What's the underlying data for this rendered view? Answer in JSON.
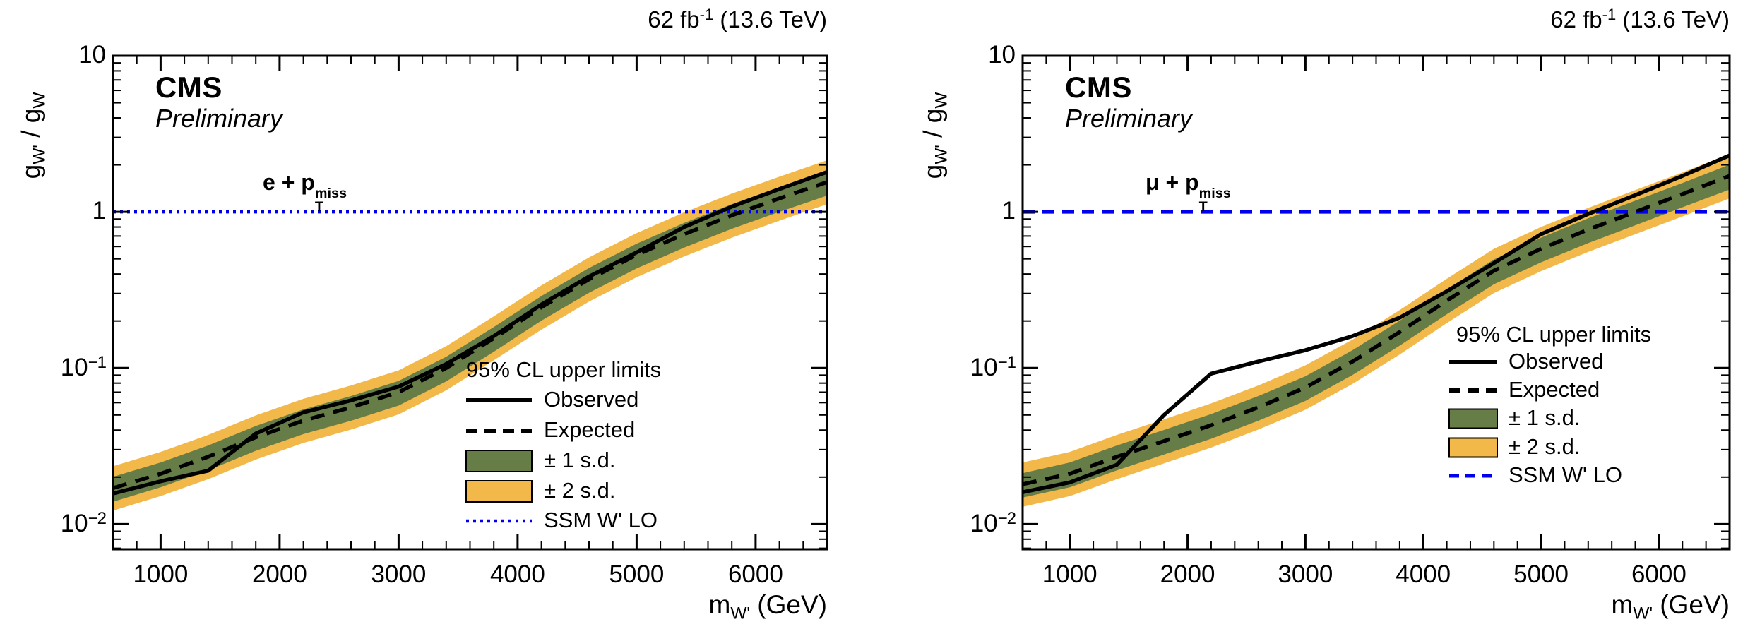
{
  "shared": {
    "cms": "CMS",
    "preliminary": "Preliminary",
    "lumi": {
      "value": "62 fb",
      "sup": "-1",
      "suffix": " (13.6 TeV)"
    },
    "y_axis": {
      "title_parts": {
        "g1": "g",
        "sub1": "W'",
        "slash": " / g",
        "sub2": "W"
      },
      "scale": "log",
      "range": [
        0.0069,
        10
      ],
      "ticks": [
        {
          "base": "10",
          "exp": "",
          "value": 10
        },
        {
          "base": "1",
          "exp": "",
          "value": 1
        },
        {
          "base": "10",
          "exp": "−1",
          "value": 0.1
        },
        {
          "base": "10",
          "exp": "−2",
          "value": 0.01
        }
      ]
    },
    "x_axis": {
      "title_parts": {
        "m": "m",
        "sub": "W'",
        "suffix": " (GeV)"
      },
      "range": [
        600,
        6600
      ],
      "tick_values": [
        1000,
        2000,
        3000,
        4000,
        5000,
        6000
      ],
      "tick_labels": [
        "1000",
        "2000",
        "3000",
        "4000",
        "5000",
        "6000"
      ],
      "minor_step": 200
    },
    "legend": {
      "title": "95% CL upper limits",
      "entries": [
        {
          "label": "Observed",
          "marker": "solid-black-line"
        },
        {
          "label": "Expected",
          "marker": "dashed-black-line"
        },
        {
          "label": "± 1 s.d.",
          "marker": "green-box"
        },
        {
          "label": "± 2 s.d.",
          "marker": "yellow-box"
        },
        {
          "label": "SSM W' LO",
          "marker": "blue-line"
        }
      ]
    },
    "colors": {
      "one_sd_band": "#677d48",
      "two_sd_band": "#f3b84a",
      "observed": "#000000",
      "expected": "#000000",
      "ssm_line": "#0000ee",
      "frame": "#000000",
      "background": "#ffffff"
    }
  },
  "chart_data": [
    {
      "type": "line",
      "panel": "left",
      "channel": "e + pT-miss",
      "channel_parts": {
        "lepton": "e",
        "plus": " + p",
        "sub": "T",
        "sup": "miss"
      },
      "ssm_line_style": "dotted",
      "ssm_value": 1.0,
      "xlabel": "m_W' (GeV)",
      "ylabel": "g_W' / g_W",
      "xlim": [
        600,
        6600
      ],
      "ylim": [
        0.0069,
        10
      ],
      "x_gev": [
        600,
        1000,
        1400,
        1800,
        2200,
        2600,
        3000,
        3400,
        3800,
        4200,
        4600,
        5000,
        5400,
        5800,
        6200,
        6600
      ],
      "observed": [
        0.0157,
        0.0188,
        0.022,
        0.038,
        0.052,
        0.062,
        0.076,
        0.106,
        0.16,
        0.255,
        0.385,
        0.55,
        0.8,
        1.08,
        1.4,
        1.8
      ],
      "expected": [
        0.017,
        0.021,
        0.027,
        0.036,
        0.046,
        0.056,
        0.07,
        0.1,
        0.155,
        0.245,
        0.37,
        0.53,
        0.72,
        0.95,
        1.22,
        1.55
      ],
      "one_sd_hi": [
        0.0201,
        0.0248,
        0.0319,
        0.0425,
        0.0543,
        0.0661,
        0.0826,
        0.118,
        0.183,
        0.289,
        0.437,
        0.625,
        0.85,
        1.12,
        1.44,
        1.83
      ],
      "one_sd_lo": [
        0.0139,
        0.0172,
        0.0221,
        0.0295,
        0.0377,
        0.0459,
        0.0574,
        0.082,
        0.127,
        0.201,
        0.303,
        0.434,
        0.59,
        0.779,
        1.0,
        1.27
      ],
      "two_sd_hi": [
        0.0235,
        0.029,
        0.0373,
        0.0497,
        0.0635,
        0.0773,
        0.0966,
        0.138,
        0.214,
        0.338,
        0.511,
        0.731,
        0.994,
        1.31,
        1.68,
        2.14
      ],
      "two_sd_lo": [
        0.0122,
        0.0151,
        0.0194,
        0.0259,
        0.0331,
        0.0403,
        0.0504,
        0.0719,
        0.112,
        0.176,
        0.266,
        0.381,
        0.518,
        0.683,
        0.878,
        1.12
      ]
    },
    {
      "type": "line",
      "panel": "right",
      "channel": "mu + pT-miss",
      "channel_parts": {
        "lepton": "μ",
        "plus": " + p",
        "sub": "T",
        "sup": "miss"
      },
      "ssm_line_style": "dashed",
      "ssm_value": 1.0,
      "xlabel": "m_W' (GeV)",
      "ylabel": "g_W' / g_W",
      "xlim": [
        600,
        6600
      ],
      "ylim": [
        0.0069,
        10
      ],
      "x_gev": [
        600,
        1000,
        1400,
        1800,
        2200,
        2600,
        3000,
        3400,
        3800,
        4200,
        4600,
        5000,
        5400,
        5800,
        6200,
        6600
      ],
      "observed": [
        0.016,
        0.0185,
        0.024,
        0.05,
        0.092,
        0.11,
        0.13,
        0.16,
        0.21,
        0.31,
        0.47,
        0.72,
        0.97,
        1.28,
        1.7,
        2.3
      ],
      "expected": [
        0.018,
        0.021,
        0.027,
        0.034,
        0.043,
        0.056,
        0.075,
        0.11,
        0.17,
        0.27,
        0.42,
        0.58,
        0.77,
        1.0,
        1.3,
        1.7
      ],
      "one_sd_hi": [
        0.0212,
        0.0248,
        0.0319,
        0.0401,
        0.0507,
        0.0661,
        0.0885,
        0.13,
        0.201,
        0.319,
        0.496,
        0.684,
        0.909,
        1.18,
        1.53,
        2.01
      ],
      "one_sd_lo": [
        0.0148,
        0.0172,
        0.0221,
        0.0279,
        0.0352,
        0.0459,
        0.0615,
        0.0902,
        0.139,
        0.221,
        0.344,
        0.475,
        0.631,
        0.82,
        1.07,
        1.39
      ],
      "two_sd_hi": [
        0.0248,
        0.029,
        0.0373,
        0.0469,
        0.0593,
        0.0773,
        0.104,
        0.152,
        0.235,
        0.373,
        0.58,
        0.8,
        1.06,
        1.38,
        1.79,
        2.35
      ],
      "two_sd_lo": [
        0.0129,
        0.0151,
        0.0194,
        0.0245,
        0.0309,
        0.0403,
        0.054,
        0.0791,
        0.122,
        0.194,
        0.302,
        0.417,
        0.554,
        0.719,
        0.935,
        1.22
      ]
    }
  ]
}
